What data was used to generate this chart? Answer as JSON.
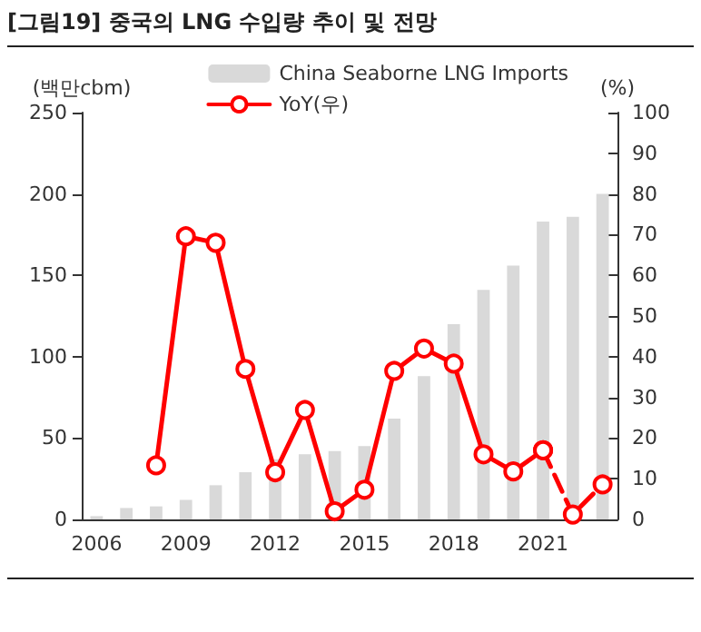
{
  "chart_data": {
    "type": "bar",
    "title": "[그림19] 중국의 LNG 수입량 추이 및 전망",
    "ylabel": "(백만cbm)",
    "y2label": "(%)",
    "categories": [
      "2006",
      null,
      null,
      "2009",
      null,
      null,
      "2012",
      null,
      null,
      "2015",
      null,
      null,
      "2018",
      null,
      null,
      "2021",
      null,
      null
    ],
    "series": [
      {
        "name": "China Seaborne LNG Imports",
        "color": "#d9d9d9",
        "values": [
          2,
          7,
          8,
          12,
          21,
          29,
          37,
          40,
          42,
          45,
          62,
          88,
          120,
          141,
          156,
          183,
          186,
          200
        ]
      },
      {
        "name": "YoY(우)",
        "type": "line",
        "axis": "y2",
        "color": "#ff0000",
        "marker": "circle",
        "line_style": "solid",
        "values": [
          null,
          null,
          13.3,
          69.6,
          68,
          37,
          11.6,
          26.9,
          2,
          7.3,
          36.5,
          42,
          38.3,
          16,
          11.8,
          17,
          null,
          null
        ]
      },
      {
        "type": "line",
        "axis": "y2",
        "color": "#ff0000",
        "marker": "circle",
        "line_style": "dashed",
        "values": [
          null,
          null,
          null,
          null,
          null,
          null,
          null,
          null,
          null,
          null,
          null,
          null,
          null,
          null,
          null,
          17,
          1.2,
          8.6
        ]
      }
    ],
    "ylim": [
      0,
      250
    ],
    "yticks": [
      0,
      50,
      100,
      150,
      200,
      250
    ],
    "y2lim": [
      0,
      100
    ],
    "y2ticks": [
      0,
      10,
      20,
      30,
      40,
      50,
      60,
      70,
      80,
      90,
      100
    ],
    "grid": false,
    "legend": "top right"
  }
}
